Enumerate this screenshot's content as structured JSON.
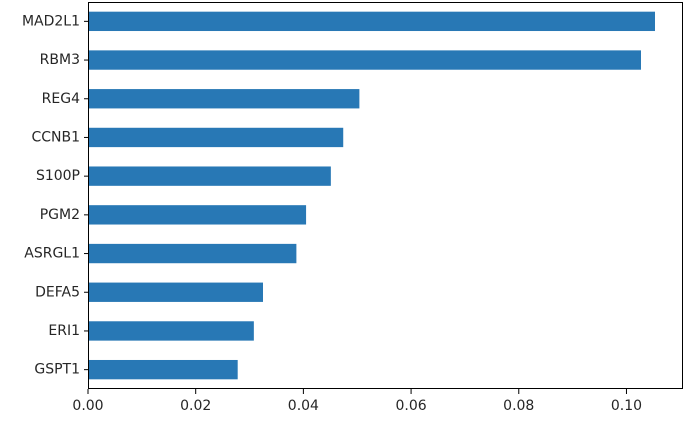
{
  "chart_data": {
    "type": "bar",
    "orientation": "horizontal",
    "categories": [
      "MAD2L1",
      "RBM3",
      "REG4",
      "CCNB1",
      "S100P",
      "PGM2",
      "ASRGL1",
      "DEFA5",
      "ERI1",
      "GSPT1"
    ],
    "values": [
      0.1053,
      0.1027,
      0.0504,
      0.0474,
      0.0451,
      0.0405,
      0.0387,
      0.0325,
      0.0308,
      0.0278
    ],
    "xticks": [
      "0.00",
      "0.02",
      "0.04",
      "0.06",
      "0.08",
      "0.10"
    ],
    "xlim": [
      0,
      0.1105
    ],
    "title": "",
    "xlabel": "",
    "ylabel": "",
    "grid": false,
    "legend": "none",
    "bar_color": "#2878b5"
  }
}
